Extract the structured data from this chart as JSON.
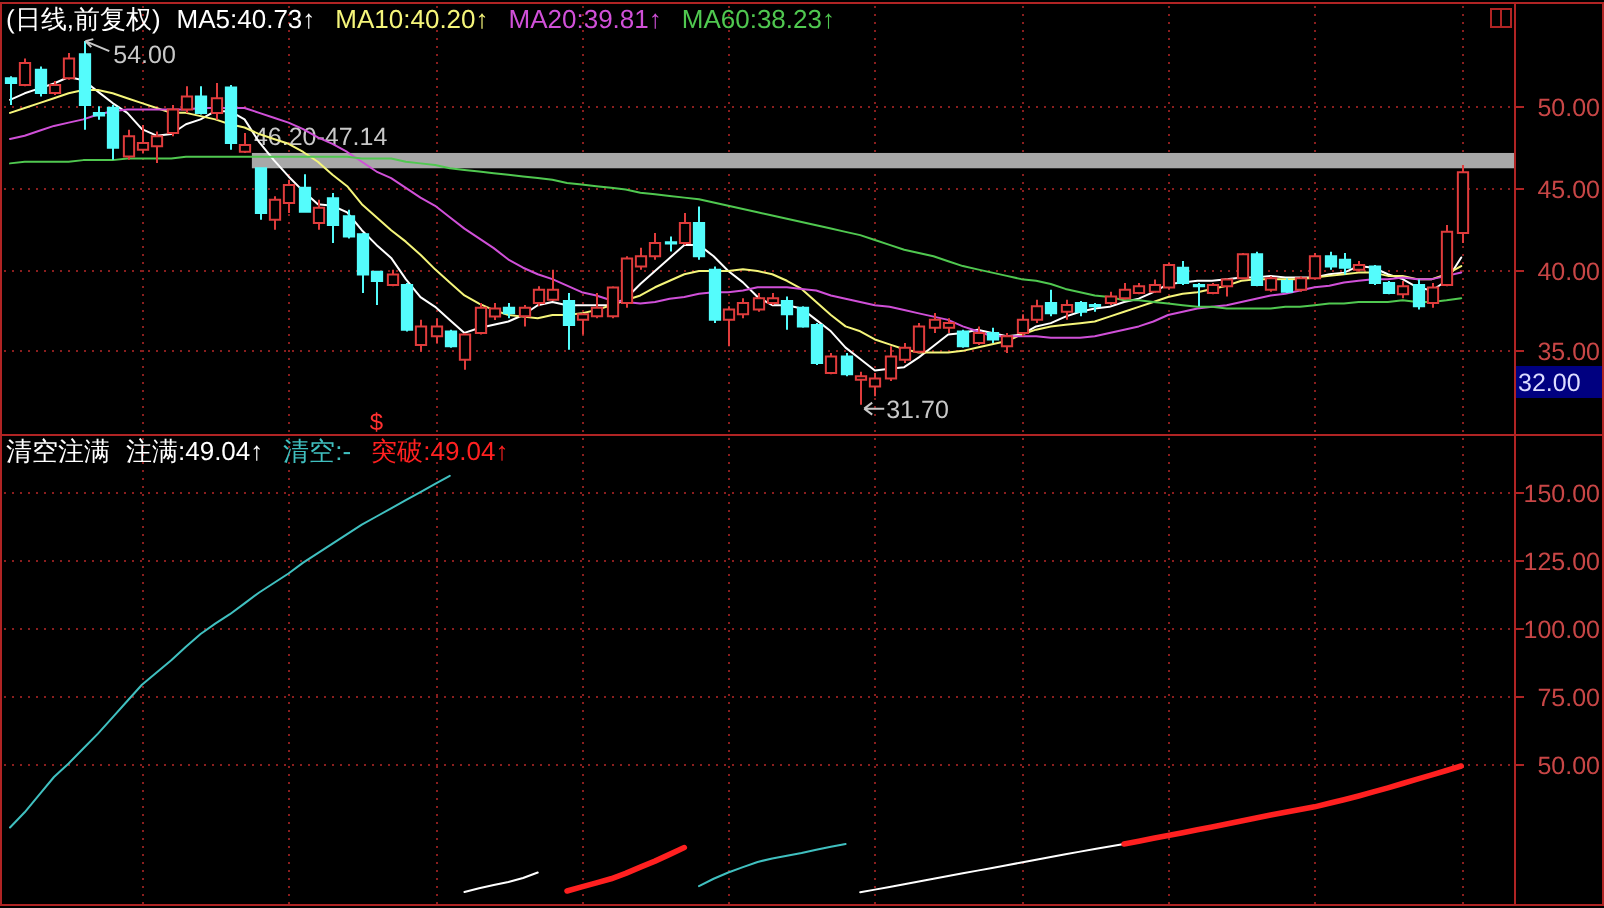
{
  "chart_data": [
    {
      "type": "candlestick",
      "title": "(日线,前复权)",
      "legend": "top left",
      "tick_labels": "y",
      "grid": true,
      "categories": [
        null,
        null,
        null,
        null,
        null,
        null,
        null,
        null,
        null,
        null,
        null,
        null,
        null,
        null,
        null,
        null,
        null,
        null,
        null,
        null,
        null,
        null,
        null,
        null,
        null,
        null,
        null,
        null,
        null,
        null,
        null,
        null,
        null,
        null,
        null,
        null,
        null,
        null,
        null,
        null,
        null,
        null,
        null,
        null,
        null,
        null,
        null,
        null,
        null,
        null,
        null,
        null,
        null,
        null,
        null,
        null,
        null,
        null,
        null,
        null,
        null,
        null,
        null,
        null,
        null,
        null,
        null,
        null,
        null,
        null,
        null,
        null,
        null,
        null,
        null,
        null,
        null,
        null,
        null,
        null,
        null,
        null,
        null,
        null,
        null,
        null,
        null,
        null,
        null,
        null,
        null,
        null,
        null,
        null,
        null,
        null,
        null,
        null,
        null,
        null
      ],
      "ohlc": [
        [
          51.72,
          51.84,
          50.08,
          51.43
        ],
        [
          51.31,
          52.94,
          51.23,
          52.66
        ],
        [
          52.25,
          52.45,
          50.61,
          50.82
        ],
        [
          50.82,
          51.55,
          50.7,
          51.31
        ],
        [
          51.72,
          53.27,
          51.63,
          52.94
        ],
        [
          53.19,
          54.0,
          48.57,
          50.08
        ],
        [
          49.59,
          50.0,
          49.18,
          49.43
        ],
        [
          49.92,
          50.08,
          46.73,
          47.46
        ],
        [
          46.93,
          48.57,
          46.73,
          48.16
        ],
        [
          47.34,
          48.85,
          47.1,
          47.75
        ],
        [
          47.55,
          48.45,
          46.52,
          48.16
        ],
        [
          48.36,
          50.08,
          48.16,
          49.8
        ],
        [
          49.8,
          51.23,
          49.59,
          50.61
        ],
        [
          50.61,
          51.23,
          49.5,
          49.59
        ],
        [
          49.59,
          51.43,
          49.18,
          50.49
        ],
        [
          51.15,
          51.31,
          47.34,
          47.75
        ],
        [
          47.22,
          48.36,
          47.14,
          47.63
        ],
        [
          46.2,
          46.2,
          43.05,
          43.46
        ],
        [
          43.05,
          44.48,
          42.43,
          44.27
        ],
        [
          44.07,
          45.5,
          43.46,
          45.17
        ],
        [
          45.01,
          45.83,
          43.54,
          43.54
        ],
        [
          42.84,
          44.27,
          42.43,
          43.78
        ],
        [
          44.36,
          44.68,
          41.62,
          42.72
        ],
        [
          43.25,
          43.66,
          41.9,
          42.02
        ],
        [
          42.15,
          42.23,
          38.55,
          39.69
        ],
        [
          39.86,
          39.86,
          37.81,
          39.28
        ],
        [
          39.04,
          39.98,
          38.96,
          39.69
        ],
        [
          39.04,
          39.16,
          36.18,
          36.3
        ],
        [
          35.36,
          36.91,
          34.95,
          36.5
        ],
        [
          35.89,
          36.99,
          35.48,
          36.5
        ],
        [
          36.18,
          36.3,
          35.19,
          35.28
        ],
        [
          34.46,
          36.09,
          33.84,
          36.01
        ],
        [
          36.09,
          37.93,
          36.0,
          37.65
        ],
        [
          37.1,
          37.93,
          36.9,
          37.6
        ],
        [
          37.65,
          37.93,
          37.0,
          37.3
        ],
        [
          37.12,
          37.81,
          36.5,
          37.65
        ],
        [
          37.93,
          38.96,
          37.73,
          38.75
        ],
        [
          38.14,
          39.98,
          38.06,
          38.75
        ],
        [
          38.06,
          38.55,
          35.07,
          36.58
        ],
        [
          36.91,
          37.32,
          36.01,
          37.24
        ],
        [
          37.12,
          38.55,
          37.0,
          37.65
        ],
        [
          37.12,
          38.96,
          37.0,
          38.88
        ],
        [
          37.93,
          40.8,
          37.65,
          40.67
        ],
        [
          40.18,
          41.33,
          39.98,
          40.8
        ],
        [
          40.8,
          42.23,
          40.59,
          41.62
        ],
        [
          41.66,
          42.02,
          41.1,
          41.58
        ],
        [
          41.62,
          43.46,
          41.5,
          42.84
        ],
        [
          42.84,
          43.86,
          40.59,
          40.8
        ],
        [
          39.98,
          40.18,
          36.71,
          36.91
        ],
        [
          36.91,
          37.73,
          35.28,
          37.53
        ],
        [
          37.24,
          38.22,
          37.0,
          37.93
        ],
        [
          37.53,
          38.55,
          37.4,
          38.22
        ],
        [
          37.93,
          38.55,
          37.81,
          38.22
        ],
        [
          38.06,
          38.34,
          36.3,
          37.24
        ],
        [
          37.65,
          37.73,
          36.42,
          36.5
        ],
        [
          36.58,
          36.71,
          34.13,
          34.25
        ],
        [
          33.64,
          34.87,
          33.56,
          34.66
        ],
        [
          34.66,
          34.87,
          33.44,
          33.56
        ],
        [
          33.23,
          33.72,
          31.7,
          33.44
        ],
        [
          32.82,
          33.64,
          32.21,
          33.31
        ],
        [
          33.31,
          35.28,
          33.15,
          34.66
        ],
        [
          34.46,
          35.48,
          34.25,
          35.19
        ],
        [
          34.95,
          36.71,
          34.87,
          36.5
        ],
        [
          36.42,
          37.32,
          36.1,
          36.91
        ],
        [
          36.42,
          37.0,
          36.1,
          36.71
        ],
        [
          36.18,
          36.3,
          35.19,
          35.28
        ],
        [
          35.48,
          36.5,
          35.36,
          36.09
        ],
        [
          36.09,
          36.42,
          35.48,
          35.69
        ],
        [
          35.28,
          36.09,
          34.87,
          35.89
        ],
        [
          36.09,
          37.24,
          35.89,
          36.91
        ],
        [
          36.91,
          38.14,
          36.71,
          37.73
        ],
        [
          37.93,
          38.75,
          37.12,
          37.3
        ],
        [
          37.4,
          38.14,
          36.91,
          37.81
        ],
        [
          37.93,
          38.06,
          37.12,
          37.4
        ],
        [
          37.81,
          37.93,
          37.4,
          37.73
        ],
        [
          37.93,
          38.63,
          37.81,
          38.34
        ],
        [
          38.22,
          39.16,
          38.14,
          38.75
        ],
        [
          38.55,
          39.16,
          38.47,
          38.96
        ],
        [
          38.63,
          39.37,
          38.55,
          39.04
        ],
        [
          38.88,
          40.39,
          38.75,
          40.27
        ],
        [
          40.1,
          40.51,
          39.04,
          39.16
        ],
        [
          39.04,
          39.16,
          37.73,
          38.96
        ],
        [
          38.55,
          39.16,
          38.47,
          39.04
        ],
        [
          38.96,
          39.45,
          38.34,
          39.37
        ],
        [
          39.45,
          41.0,
          39.37,
          40.92
        ],
        [
          40.92,
          41.08,
          38.96,
          39.04
        ],
        [
          38.75,
          39.57,
          38.63,
          39.45
        ],
        [
          39.28,
          39.45,
          38.55,
          38.63
        ],
        [
          38.75,
          39.57,
          38.63,
          39.45
        ],
        [
          39.45,
          41.0,
          39.37,
          40.8
        ],
        [
          40.8,
          41.08,
          39.98,
          40.18
        ],
        [
          40.59,
          41.0,
          39.69,
          40.1
        ],
        [
          39.98,
          40.51,
          39.86,
          40.27
        ],
        [
          40.18,
          40.27,
          39.04,
          39.16
        ],
        [
          39.16,
          39.28,
          38.47,
          38.55
        ],
        [
          38.47,
          39.28,
          38.22,
          38.96
        ],
        [
          39.04,
          39.37,
          37.53,
          37.73
        ],
        [
          37.93,
          39.16,
          37.65,
          38.88
        ],
        [
          39.04,
          42.72,
          38.96,
          42.31
        ],
        [
          42.23,
          46.4,
          41.62,
          45.95
        ]
      ],
      "colors": [
        "#54fcfc",
        "#e03c3c",
        "#54fcfc",
        "#e03c3c",
        "#e03c3c",
        "#54fcfc",
        "#54fcfc",
        "#54fcfc",
        "#e03c3c",
        "#e03c3c",
        "#e03c3c",
        "#e03c3c",
        "#e03c3c",
        "#54fcfc",
        "#e03c3c",
        "#54fcfc",
        "#e03c3c",
        "#54fcfc",
        "#e03c3c",
        "#e03c3c",
        "#54fcfc",
        "#e03c3c",
        "#54fcfc",
        "#54fcfc",
        "#54fcfc",
        "#54fcfc",
        "#e03c3c",
        "#54fcfc",
        "#e03c3c",
        "#e03c3c",
        "#54fcfc",
        "#e03c3c",
        "#e03c3c",
        "#e03c3c",
        "#54fcfc",
        "#e03c3c",
        "#e03c3c",
        "#e03c3c",
        "#54fcfc",
        "#e03c3c",
        "#e03c3c",
        "#e03c3c",
        "#e03c3c",
        "#e03c3c",
        "#e03c3c",
        "#54fcfc",
        "#e03c3c",
        "#54fcfc",
        "#54fcfc",
        "#e03c3c",
        "#e03c3c",
        "#e03c3c",
        "#e03c3c",
        "#54fcfc",
        "#54fcfc",
        "#54fcfc",
        "#e03c3c",
        "#54fcfc",
        "#e03c3c",
        "#e03c3c",
        "#e03c3c",
        "#e03c3c",
        "#e03c3c",
        "#e03c3c",
        "#e03c3c",
        "#54fcfc",
        "#e03c3c",
        "#54fcfc",
        "#e03c3c",
        "#e03c3c",
        "#e03c3c",
        "#54fcfc",
        "#e03c3c",
        "#54fcfc",
        "#54fcfc",
        "#e03c3c",
        "#e03c3c",
        "#e03c3c",
        "#e03c3c",
        "#e03c3c",
        "#54fcfc",
        "#54fcfc",
        "#e03c3c",
        "#e03c3c",
        "#e03c3c",
        "#54fcfc",
        "#e03c3c",
        "#54fcfc",
        "#e03c3c",
        "#e03c3c",
        "#54fcfc",
        "#54fcfc",
        "#e03c3c",
        "#54fcfc",
        "#54fcfc",
        "#e03c3c",
        "#54fcfc",
        "#e03c3c",
        "#e03c3c",
        "#e03c3c"
      ],
      "series": [
        {
          "name": "MA5:40.73↑",
          "type": "line",
          "color": "#ffffff",
          "values": [
            50.4,
            50.8,
            51.1,
            51.4,
            51.8,
            51.6,
            50.9,
            50.2,
            49.6,
            48.6,
            48.2,
            48.3,
            48.9,
            49.2,
            49.7,
            49.7,
            49.2,
            47.8,
            46.7,
            45.7,
            44.8,
            44.0,
            43.9,
            43.5,
            42.4,
            41.5,
            40.7,
            39.4,
            38.3,
            37.7,
            36.9,
            36.1,
            36.4,
            36.6,
            36.8,
            37.2,
            37.8,
            38.0,
            37.8,
            37.8,
            37.8,
            37.8,
            38.2,
            39.1,
            39.9,
            40.7,
            41.5,
            41.5,
            40.8,
            39.9,
            39.2,
            38.3,
            37.8,
            37.8,
            37.6,
            36.9,
            36.2,
            35.2,
            34.5,
            33.8,
            33.9,
            34.0,
            34.6,
            35.3,
            36.0,
            36.1,
            36.3,
            36.1,
            35.9,
            36.0,
            36.5,
            36.7,
            37.1,
            37.4,
            37.6,
            37.7,
            38.0,
            38.2,
            38.6,
            39.1,
            39.2,
            39.3,
            39.3,
            39.4,
            39.5,
            39.5,
            39.6,
            39.5,
            39.5,
            39.5,
            39.7,
            39.8,
            40.2,
            40.1,
            39.7,
            39.4,
            38.9,
            38.7,
            39.3,
            40.73
          ]
        },
        {
          "name": "MA10:40.20↑",
          "type": "line",
          "color": "#f5f57a",
          "values": [
            49.6,
            49.9,
            50.2,
            50.5,
            50.8,
            51.0,
            51.0,
            50.8,
            50.5,
            50.2,
            49.9,
            49.6,
            49.6,
            49.4,
            49.2,
            48.9,
            48.7,
            48.3,
            48.0,
            47.7,
            47.2,
            46.6,
            45.8,
            45.1,
            44.0,
            43.2,
            42.4,
            41.7,
            40.9,
            40.0,
            39.2,
            38.4,
            37.9,
            37.5,
            37.2,
            37.1,
            37.0,
            37.2,
            37.2,
            37.3,
            37.5,
            37.8,
            38.1,
            38.4,
            38.9,
            39.3,
            39.7,
            39.9,
            39.9,
            39.9,
            40.0,
            39.9,
            39.7,
            39.3,
            38.8,
            38.0,
            37.2,
            36.5,
            36.2,
            35.7,
            35.4,
            35.1,
            34.9,
            34.9,
            34.9,
            35.0,
            35.2,
            35.4,
            35.6,
            36.0,
            36.3,
            36.5,
            36.6,
            36.7,
            36.8,
            37.1,
            37.4,
            37.7,
            38.0,
            38.3,
            38.5,
            38.6,
            38.8,
            39.0,
            39.3,
            39.4,
            39.4,
            39.4,
            39.4,
            39.5,
            39.6,
            39.7,
            39.8,
            39.8,
            39.6,
            39.6,
            39.4,
            39.4,
            39.7,
            40.2
          ]
        },
        {
          "name": "MA20:39.81↑",
          "type": "line",
          "color": "#d050d8",
          "values": [
            48.0,
            48.2,
            48.5,
            48.8,
            49.0,
            49.2,
            49.5,
            49.7,
            49.8,
            49.8,
            49.8,
            49.8,
            49.8,
            49.9,
            49.9,
            49.9,
            49.9,
            49.6,
            49.3,
            49.0,
            48.6,
            48.1,
            47.7,
            47.2,
            46.6,
            46.0,
            45.6,
            45.0,
            44.4,
            43.9,
            43.2,
            42.5,
            41.9,
            41.3,
            40.6,
            40.1,
            39.7,
            39.4,
            39.0,
            38.6,
            38.4,
            38.1,
            38.0,
            37.9,
            38.0,
            38.2,
            38.3,
            38.5,
            38.6,
            38.6,
            38.7,
            38.9,
            38.9,
            38.9,
            38.8,
            38.7,
            38.4,
            38.2,
            38.0,
            37.8,
            37.7,
            37.5,
            37.3,
            37.1,
            36.9,
            36.5,
            36.2,
            35.9,
            35.9,
            35.9,
            35.9,
            35.8,
            35.8,
            35.8,
            35.9,
            36.1,
            36.3,
            36.5,
            36.8,
            37.2,
            37.4,
            37.6,
            37.7,
            37.8,
            38.0,
            38.2,
            38.4,
            38.5,
            38.7,
            38.9,
            39.0,
            39.2,
            39.3,
            39.4,
            39.4,
            39.5,
            39.4,
            39.4,
            39.6,
            39.81
          ]
        },
        {
          "name": "MA60:38.23↑",
          "type": "line",
          "color": "#50c850",
          "values": [
            46.5,
            46.6,
            46.6,
            46.6,
            46.6,
            46.7,
            46.7,
            46.7,
            46.8,
            46.8,
            46.8,
            46.8,
            46.9,
            46.9,
            46.9,
            46.9,
            46.9,
            46.9,
            46.9,
            46.9,
            46.9,
            46.9,
            46.9,
            46.9,
            46.8,
            46.8,
            46.8,
            46.6,
            46.5,
            46.4,
            46.2,
            46.1,
            46.0,
            45.9,
            45.8,
            45.7,
            45.6,
            45.5,
            45.3,
            45.2,
            45.1,
            45.0,
            44.9,
            44.7,
            44.6,
            44.5,
            44.4,
            44.3,
            44.1,
            43.9,
            43.7,
            43.5,
            43.3,
            43.1,
            42.9,
            42.7,
            42.5,
            42.3,
            42.1,
            41.8,
            41.5,
            41.2,
            41.0,
            40.8,
            40.5,
            40.2,
            40.0,
            39.8,
            39.6,
            39.4,
            39.3,
            39.1,
            38.8,
            38.6,
            38.4,
            38.3,
            38.1,
            38.1,
            38.0,
            37.9,
            37.8,
            37.7,
            37.7,
            37.6,
            37.6,
            37.6,
            37.6,
            37.7,
            37.7,
            37.8,
            37.9,
            37.9,
            38.0,
            38.0,
            38.0,
            38.1,
            38.0,
            38.0,
            38.1,
            38.23
          ]
        }
      ],
      "ylim": [
        29.9,
        56.4
      ],
      "yticks": [
        {
          "value": 35,
          "label": "35.00"
        },
        {
          "value": 40,
          "label": "40.00"
        },
        {
          "value": 45,
          "label": "45.00"
        },
        {
          "value": 50,
          "label": "50.00"
        }
      ],
      "bands": [
        {
          "axis": "y",
          "from": 46.2,
          "to": 47.14,
          "label": "46.20-47.14",
          "color": "#a8a8a8"
        }
      ],
      "annotations": [
        "54.00",
        "31.70",
        "$",
        "32.00"
      ]
    },
    {
      "type": "line",
      "title": "清空注满",
      "legend": "top left",
      "tick_labels": "y",
      "grid": true,
      "categories": [
        null,
        null,
        null,
        null,
        null,
        null,
        null,
        null,
        null,
        null,
        null,
        null,
        null,
        null,
        null,
        null,
        null,
        null,
        null,
        null,
        null,
        null,
        null,
        null,
        null,
        null,
        null,
        null,
        null,
        null,
        null,
        null,
        null,
        null,
        null,
        null,
        null,
        null,
        null,
        null,
        null,
        null,
        null,
        null,
        null,
        null,
        null,
        null,
        null,
        null,
        null,
        null,
        null,
        null,
        null,
        null,
        null,
        null,
        null,
        null,
        null,
        null,
        null,
        null,
        null,
        null,
        null,
        null,
        null,
        null,
        null,
        null,
        null,
        null,
        null,
        null,
        null,
        null,
        null,
        null,
        null,
        null,
        null,
        null,
        null,
        null,
        null,
        null,
        null,
        null,
        null,
        null,
        null,
        null,
        null,
        null,
        null,
        null,
        null,
        null
      ],
      "series": [
        {
          "name": "注满:49.04↑",
          "color": "#ffffff",
          "values": [
            null,
            null,
            null,
            null,
            null,
            null,
            null,
            null,
            null,
            null,
            null,
            null,
            null,
            null,
            null,
            null,
            null,
            null,
            null,
            null,
            null,
            null,
            null,
            null,
            null,
            null,
            null,
            null,
            null,
            null,
            null,
            2.6,
            4.0,
            5.2,
            6.3,
            7.8,
            9.8,
            null,
            null,
            null,
            null,
            null,
            null,
            null,
            null,
            null,
            null,
            null,
            null,
            null,
            null,
            null,
            null,
            null,
            null,
            null,
            null,
            null,
            2.5,
            3.5,
            4.5,
            5.5,
            6.5,
            7.5,
            8.5,
            9.5,
            10.5,
            11.5,
            12.5,
            13.5,
            14.5,
            15.5,
            16.5,
            17.5,
            18.5,
            19.4,
            20.3,
            null,
            null,
            null,
            null,
            null,
            null,
            null,
            null,
            null,
            null,
            null,
            null,
            null,
            null,
            null,
            null,
            null,
            null,
            null,
            null,
            null,
            null,
            null
          ]
        },
        {
          "name": "清空:-",
          "color": "#40c0c0",
          "values": [
            26.4,
            32,
            38.5,
            45,
            50,
            55.5,
            61,
            67,
            73,
            79,
            83.5,
            88,
            93,
            97.7,
            101.5,
            105,
            109,
            113,
            116.5,
            120,
            124,
            127.5,
            131,
            134.5,
            138,
            141,
            144,
            147,
            150,
            153,
            156,
            null,
            null,
            null,
            null,
            null,
            null,
            null,
            null,
            null,
            null,
            null,
            null,
            null,
            null,
            null,
            null,
            4.8,
            7.5,
            9.8,
            11.8,
            13.7,
            15.0,
            16.0,
            17.0,
            18.2,
            19.3,
            20.3,
            null,
            null,
            null,
            null,
            null,
            null,
            null,
            null,
            null,
            null,
            null,
            null,
            null,
            null,
            null,
            null,
            null,
            null,
            null,
            null,
            null,
            null,
            null,
            null,
            null,
            null,
            null,
            null,
            null,
            null,
            null,
            null,
            null,
            null,
            null,
            null,
            null,
            null,
            null,
            null,
            null,
            null
          ]
        },
        {
          "name": "突破:49.04↑",
          "color": "#ff2020",
          "values": [
            null,
            null,
            null,
            null,
            null,
            null,
            null,
            null,
            null,
            null,
            null,
            null,
            null,
            null,
            null,
            null,
            null,
            null,
            null,
            null,
            null,
            null,
            null,
            null,
            null,
            null,
            null,
            null,
            null,
            null,
            null,
            null,
            null,
            null,
            null,
            null,
            null,
            null,
            3.0,
            4.5,
            6.0,
            7.5,
            9.5,
            11.8,
            14.0,
            16.5,
            19.0,
            null,
            null,
            null,
            null,
            null,
            null,
            null,
            null,
            null,
            null,
            null,
            null,
            null,
            null,
            null,
            null,
            null,
            null,
            null,
            null,
            null,
            null,
            null,
            null,
            null,
            null,
            null,
            null,
            null,
            20.3,
            21.3,
            22.4,
            23.4,
            24.5,
            25.6,
            26.6,
            27.7,
            28.8,
            29.9,
            31.0,
            32.0,
            33.0,
            34.0,
            35.3,
            36.6,
            38.0,
            39.5,
            41.0,
            42.6,
            44.2,
            45.8,
            47.4,
            49.04
          ]
        }
      ],
      "ylim": [
        -1.8,
        171.4
      ],
      "yticks": [
        {
          "value": 50,
          "label": "50.00"
        },
        {
          "value": 75,
          "label": "75.00"
        },
        {
          "value": 100,
          "label": "100.00"
        },
        {
          "value": 125,
          "label": "125.00"
        },
        {
          "value": 150,
          "label": "150.00"
        }
      ]
    }
  ]
}
